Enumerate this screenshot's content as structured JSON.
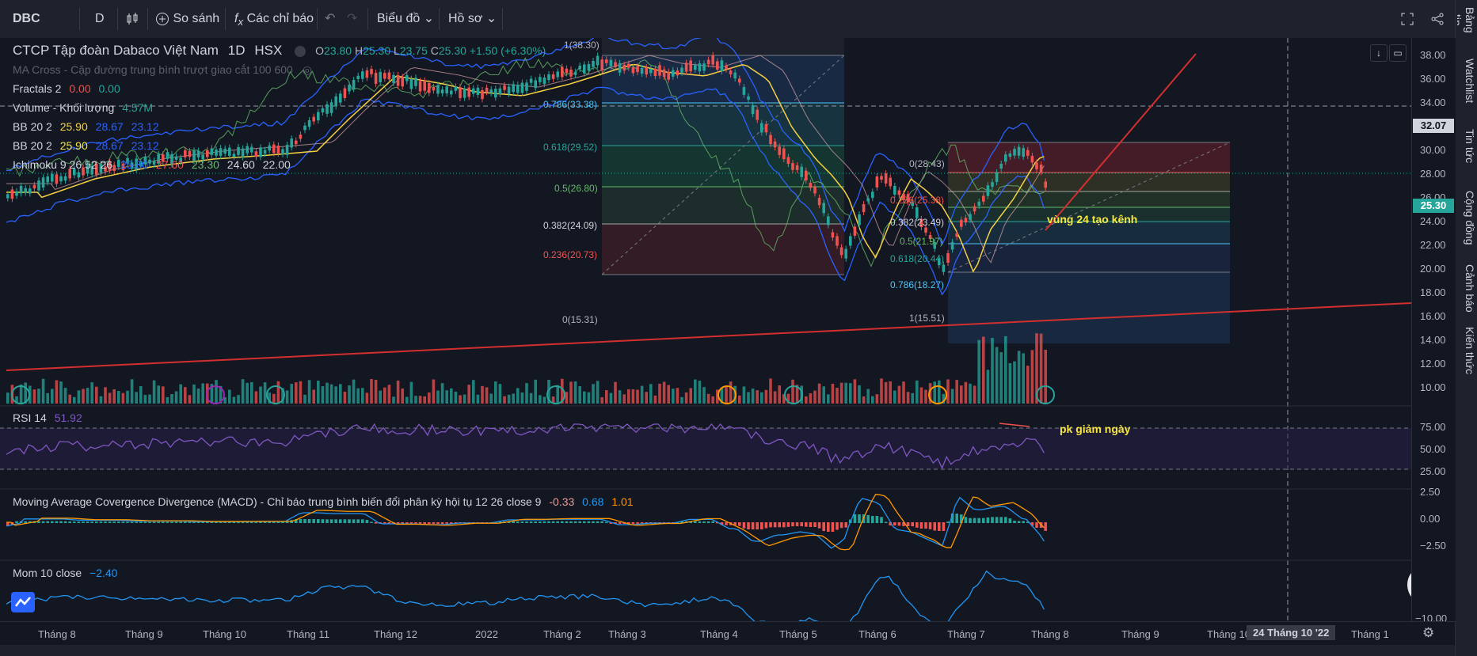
{
  "toolbar": {
    "symbol": "DBC",
    "interval": "D",
    "compare_label": "So sánh",
    "indicators_label": "Các chỉ báo",
    "layout_label": "Biểu đồ",
    "profile_label": "Hồ sơ"
  },
  "sidebar": {
    "tabs": [
      "Watchlist",
      "Tin tức",
      "Cộng đồng",
      "Cảnh báo",
      "Kiến thức"
    ],
    "top_tab": "Bảng tin"
  },
  "legend": {
    "title": "CTCP Tập đoàn Dabaco Việt Nam",
    "tf": "1D",
    "exchange": "HSX",
    "o_label": "O",
    "o": "23.80",
    "h_label": "H",
    "h": "25.30",
    "l_label": "L",
    "l": "23.75",
    "c_label": "C",
    "c": "25.30",
    "change": "+1.50 (+6.30%)",
    "ma_cross": "MA Cross - Cặp đường trung bình trượt giao cắt 100 600",
    "fractals": "Fractals 2",
    "fr1": "0.00",
    "fr2": "0.00",
    "volume": "Volume - Khối lượng",
    "volume_val": "4.57M",
    "bb1": "BB 20 2",
    "bb1_a": "25.90",
    "bb1_b": "28.67",
    "bb1_c": "23.12",
    "bb2": "BB 20 2",
    "bb2_a": "25.90",
    "bb2_b": "28.67",
    "bb2_c": "23.12",
    "ichimoku": "Ichimoku 9 26 52 26",
    "ich_a": "25.80",
    "ich_b": "27.60",
    "ich_c": "23.30",
    "ich_d": "24.60",
    "ich_e": "22.00"
  },
  "price_axis": {
    "ticks": [
      "38.00",
      "36.00",
      "34.00",
      "32.00",
      "30.00",
      "28.00",
      "26.00",
      "24.00",
      "22.00",
      "20.00",
      "18.00",
      "16.00",
      "14.00",
      "12.00",
      "10.00"
    ],
    "crosshair_badge": "32.07",
    "last_badge": "25.30"
  },
  "fib_left": {
    "levels": [
      "1(38.30)",
      "0.786(33.38)",
      "0.618(29.52)",
      "0.5(26.80)",
      "0.382(24.09)",
      "0.236(20.73)",
      "0(15.31)"
    ]
  },
  "fib_right": {
    "levels": [
      "0(28.43)",
      "0.236(25.38)",
      "0.382(23.49)",
      "0.5(21.97)",
      "0.618(20.44)",
      "0.786(18.27)",
      "1(15.51)"
    ]
  },
  "annotations": {
    "channel_note": "vùng 24 tạo kênh",
    "rsi_note": "pk giảm ngày"
  },
  "rsi": {
    "label": "RSI 14",
    "value": "51.92",
    "ticks": [
      "75.00",
      "50.00",
      "25.00"
    ]
  },
  "macd": {
    "label": "Moving Average Covergence Divergence (MACD) - Chỉ báo trung bình biến đổi phân kỳ hội tụ 12 26 close 9",
    "v1": "-0.33",
    "v2": "0.68",
    "v3": "1.01",
    "ticks": [
      "2.50",
      "0.00",
      "−2.50"
    ]
  },
  "mom": {
    "label": "Mom 10 close",
    "value": "−2.40",
    "ticks": [
      "−10.00"
    ]
  },
  "time_axis": {
    "labels": [
      "Tháng 8",
      "Tháng 9",
      "Tháng 10",
      "Tháng 11",
      "Tháng 12",
      "2022",
      "Tháng 2",
      "Tháng 3",
      "Tháng 4",
      "Tháng 5",
      "Tháng 6",
      "Tháng 7",
      "Tháng 8",
      "Tháng 9",
      "Tháng 10",
      "Tháng 1"
    ],
    "crosshair_date": "24 Tháng 10 '22"
  },
  "colors": {
    "bg": "#131722",
    "up": "#26a69a",
    "down": "#ef5350",
    "bb": "#2962ff",
    "accent": "#f5e642"
  }
}
